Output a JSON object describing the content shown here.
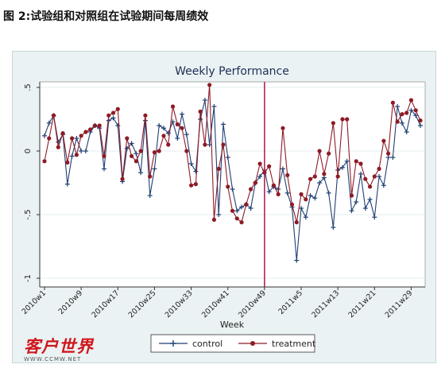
{
  "caption": "图 2:试验组和对照组在试验期间每周绩效",
  "logo": {
    "main": "客户世界",
    "sub": "WWW.CCMW.NET"
  },
  "colors": {
    "control": "#1f3f73",
    "treatment": "#8e1b26",
    "divider": "#b0124a",
    "plot_bg": "#ffffff",
    "outer_bg": "#eaf2f3"
  },
  "chart_data": {
    "type": "line",
    "title": "Weekly Performance",
    "xlabel": "Week",
    "ylabel": "",
    "ylim": [
      -1,
      0.5
    ],
    "yticks": [
      ".5",
      "0",
      "-.5",
      "-1"
    ],
    "ytick_values": [
      0.5,
      0,
      -0.5,
      -1
    ],
    "xticks": [
      "2010w1",
      "2010w9",
      "2010w17",
      "2010w25",
      "2010w33",
      "2010w41",
      "2010w49",
      "2011w5",
      "2011w13",
      "2011w21",
      "2011w29"
    ],
    "xtick_index": [
      0,
      8,
      16,
      24,
      32,
      40,
      48,
      56,
      64,
      72,
      80
    ],
    "vline_index": 48,
    "grid": true,
    "legend_position": "bottom",
    "series": [
      {
        "name": "control",
        "marker": "plus",
        "values": [
          0.12,
          0.22,
          0.28,
          0.07,
          0.13,
          -0.26,
          -0.04,
          0.1,
          0.0,
          0.0,
          0.15,
          0.2,
          0.18,
          -0.14,
          0.24,
          0.26,
          0.2,
          -0.24,
          0.02,
          0.06,
          -0.02,
          -0.17,
          0.24,
          -0.35,
          -0.14,
          0.2,
          0.18,
          0.14,
          0.23,
          0.1,
          0.29,
          0.13,
          -0.1,
          -0.16,
          0.25,
          0.4,
          0.05,
          0.35,
          -0.5,
          0.21,
          -0.05,
          -0.3,
          -0.47,
          -0.44,
          -0.42,
          -0.45,
          -0.25,
          -0.2,
          -0.15,
          -0.32,
          -0.28,
          -0.3,
          -0.14,
          -0.33,
          -0.44,
          -0.86,
          -0.45,
          -0.52,
          -0.35,
          -0.37,
          -0.25,
          -0.21,
          -0.33,
          -0.6,
          -0.15,
          -0.13,
          -0.08,
          -0.47,
          -0.4,
          -0.18,
          -0.45,
          -0.38,
          -0.52,
          -0.2,
          -0.27,
          -0.05,
          -0.05,
          0.35,
          0.22,
          0.15,
          0.32,
          0.28,
          0.2
        ]
      },
      {
        "name": "treatment",
        "marker": "circle",
        "values": [
          -0.08,
          0.1,
          0.28,
          0.03,
          0.14,
          -0.09,
          0.1,
          -0.03,
          0.12,
          0.15,
          0.17,
          0.2,
          0.2,
          -0.04,
          0.28,
          0.3,
          0.33,
          -0.22,
          0.1,
          -0.04,
          -0.08,
          0.0,
          0.28,
          -0.2,
          -0.01,
          0.0,
          0.12,
          0.05,
          0.35,
          0.21,
          0.18,
          0.0,
          -0.27,
          -0.26,
          0.31,
          0.05,
          0.52,
          -0.54,
          -0.14,
          0.05,
          -0.28,
          -0.47,
          -0.53,
          -0.56,
          -0.42,
          -0.3,
          -0.25,
          -0.1,
          -0.17,
          -0.12,
          -0.27,
          -0.34,
          0.18,
          -0.19,
          -0.42,
          -0.56,
          -0.34,
          -0.38,
          -0.22,
          -0.2,
          0.0,
          -0.18,
          -0.02,
          0.22,
          -0.2,
          0.25,
          0.25,
          -0.35,
          -0.08,
          -0.1,
          -0.22,
          -0.28,
          -0.2,
          -0.14,
          0.08,
          -0.02,
          0.38,
          0.23,
          0.29,
          0.3,
          0.4,
          0.32,
          0.24
        ]
      }
    ]
  }
}
